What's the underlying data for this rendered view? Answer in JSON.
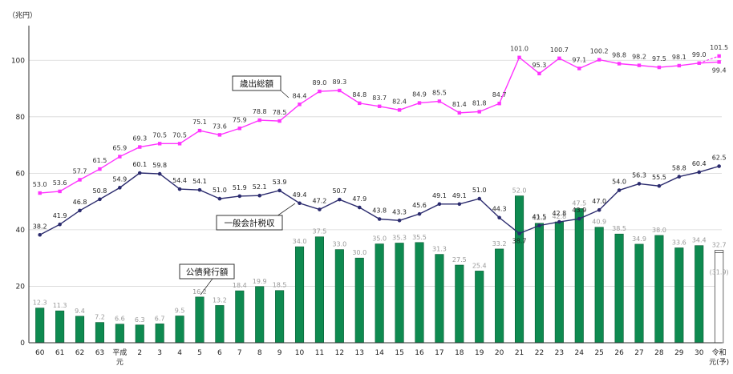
{
  "chart_data": {
    "type": "bar+line",
    "unit_label": "（兆円）",
    "ylim": [
      0,
      110
    ],
    "yticks": [
      0,
      20,
      40,
      60,
      80,
      100
    ],
    "categories": [
      "60",
      "61",
      "62",
      "63",
      "平成元",
      "2",
      "3",
      "4",
      "5",
      "6",
      "7",
      "8",
      "9",
      "10",
      "11",
      "12",
      "13",
      "14",
      "15",
      "16",
      "17",
      "18",
      "19",
      "20",
      "21",
      "22",
      "23",
      "24",
      "25",
      "26",
      "27",
      "28",
      "29",
      "30",
      "令和元(予)"
    ],
    "category_labels": [
      [
        "60"
      ],
      [
        "61"
      ],
      [
        "62"
      ],
      [
        "63"
      ],
      [
        "平成",
        "元"
      ],
      [
        "2"
      ],
      [
        "3"
      ],
      [
        "4"
      ],
      [
        "5"
      ],
      [
        "6"
      ],
      [
        "7"
      ],
      [
        "8"
      ],
      [
        "9"
      ],
      [
        "10"
      ],
      [
        "11"
      ],
      [
        "12"
      ],
      [
        "13"
      ],
      [
        "14"
      ],
      [
        "15"
      ],
      [
        "16"
      ],
      [
        "17"
      ],
      [
        "18"
      ],
      [
        "19"
      ],
      [
        "20"
      ],
      [
        "21"
      ],
      [
        "22"
      ],
      [
        "23"
      ],
      [
        "24"
      ],
      [
        "25"
      ],
      [
        "26"
      ],
      [
        "27"
      ],
      [
        "28"
      ],
      [
        "29"
      ],
      [
        "30"
      ],
      [
        "令和",
        "元(予)"
      ]
    ],
    "series": [
      {
        "name": "歳出総額",
        "kind": "line",
        "color": "#ff33ff",
        "values": [
          53.0,
          53.6,
          57.7,
          61.5,
          65.9,
          69.3,
          70.5,
          70.5,
          75.1,
          73.6,
          75.9,
          78.8,
          78.5,
          84.4,
          89.0,
          89.3,
          84.8,
          83.7,
          82.4,
          84.9,
          85.5,
          81.4,
          81.8,
          84.7,
          101.0,
          95.3,
          100.7,
          97.1,
          100.2,
          98.8,
          98.2,
          97.5,
          98.1,
          99.0,
          99.4
        ],
        "labels": [
          "53.0",
          "53.6",
          "57.7",
          "61.5",
          "65.9",
          "69.3",
          "70.5",
          "70.5",
          "75.1",
          "73.6",
          "75.9",
          "78.8",
          "78.5",
          "84.4",
          "89.0",
          "89.3",
          "84.8",
          "83.7",
          "82.4",
          "84.9",
          "85.5",
          "81.4",
          "81.8",
          "84.7",
          "101.0",
          "95.3",
          "100.7",
          "97.1",
          "100.2",
          "98.8",
          "98.2",
          "97.5",
          "98.1",
          "99.0",
          "99.4"
        ],
        "extra_point": {
          "value": 101.5,
          "label": "101.5"
        }
      },
      {
        "name": "一般会計税収",
        "kind": "line",
        "color": "#2b2b6e",
        "values": [
          38.2,
          41.9,
          46.8,
          50.8,
          54.9,
          60.1,
          59.8,
          54.4,
          54.1,
          51.0,
          51.9,
          52.1,
          53.9,
          49.4,
          47.2,
          50.7,
          47.9,
          43.8,
          43.3,
          45.6,
          49.1,
          49.1,
          51.0,
          44.3,
          38.7,
          41.5,
          42.8,
          43.9,
          47.0,
          54.0,
          56.3,
          55.5,
          58.8,
          60.4,
          62.5
        ],
        "labels": [
          "38.2",
          "41.9",
          "46.8",
          "50.8",
          "54.9",
          "60.1",
          "59.8",
          "54.4",
          "54.1",
          "51.0",
          "51.9",
          "52.1",
          "53.9",
          "49.4",
          "47.2",
          "50.7",
          "47.9",
          "43.8",
          "43.3",
          "45.6",
          "49.1",
          "49.1",
          "51.0",
          "44.3",
          "38.7",
          "41.5",
          "42.8",
          "43.9",
          "47.0",
          "54.0",
          "56.3",
          "55.5",
          "58.8",
          "60.4",
          "62.5"
        ]
      },
      {
        "name": "公債発行額",
        "kind": "bar",
        "color": "#0e8a50",
        "values": [
          12.3,
          11.3,
          9.4,
          7.2,
          6.6,
          6.3,
          6.7,
          9.5,
          16.2,
          13.2,
          18.4,
          19.9,
          18.5,
          34.0,
          37.5,
          33.0,
          30.0,
          35.0,
          35.3,
          35.5,
          31.3,
          27.5,
          25.4,
          33.2,
          52.0,
          42.3,
          42.8,
          47.5,
          40.9,
          38.5,
          34.9,
          38.0,
          33.6,
          34.4,
          32.7
        ],
        "labels": [
          "12.3",
          "11.3",
          "9.4",
          "7.2",
          "6.6",
          "6.3",
          "6.7",
          "9.5",
          "16.2",
          "13.2",
          "18.4",
          "19.9",
          "18.5",
          "34.0",
          "37.5",
          "33.0",
          "30.0",
          "35.0",
          "35.3",
          "35.5",
          "31.3",
          "27.5",
          "25.4",
          "33.2",
          "52.0",
          "42.3",
          "42.8",
          "47.5",
          "40.9",
          "38.5",
          "34.9",
          "38.0",
          "33.6",
          "34.4",
          "32.7"
        ],
        "last_sub_value": 31.9,
        "last_sub_label": "(31.9)"
      }
    ],
    "callouts": {
      "spend": "歳出総額",
      "tax": "一般会計税収",
      "bond": "公債発行額"
    }
  }
}
